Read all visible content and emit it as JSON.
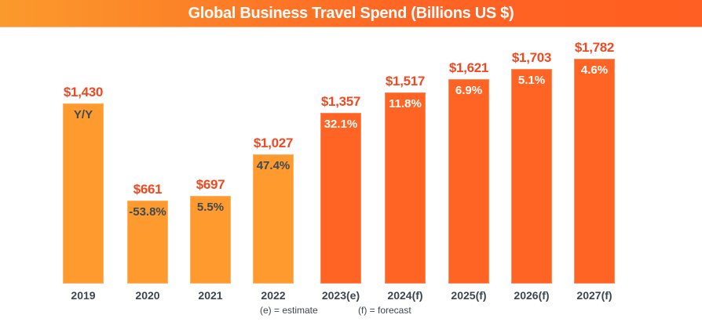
{
  "header": {
    "title": "Global Business Travel Spend (Billions US $)"
  },
  "notes": {
    "estimate": "(e) = estimate",
    "forecast": "(f) = forecast"
  },
  "colors": {
    "historical_bar": "#fe9a2e",
    "projected_bar": "#ff6424",
    "value_label": "#f14a22",
    "historical_pct_text": "#3d4a55",
    "projected_pct_text": "#ffffff",
    "axis_text": "#3c4650"
  },
  "chart_data": {
    "type": "bar",
    "title": "Global Business Travel Spend (Billions US $)",
    "xlabel": "",
    "ylabel": "",
    "categories": [
      "2019",
      "2020",
      "2021",
      "2022",
      "2023(e)",
      "2024(f)",
      "2025(f)",
      "2026(f)",
      "2027(f)"
    ],
    "values": [
      1430,
      661,
      697,
      1027,
      1357,
      1517,
      1621,
      1703,
      1782
    ],
    "value_labels": [
      "$1,430",
      "$661",
      "$697",
      "$1,027",
      "$1,357",
      "$1,517",
      "$1,621",
      "$1,703",
      "$1,782"
    ],
    "yoy_labels": [
      "Y/Y",
      "-53.8%",
      "5.5%",
      "47.4%",
      "32.1%",
      "11.8%",
      "6.9%",
      "5.1%",
      "4.6%"
    ],
    "yoy_change_pct": [
      null,
      -53.8,
      5.5,
      47.4,
      32.1,
      11.8,
      6.9,
      5.1,
      4.6
    ],
    "bar_kind": [
      "actual",
      "actual",
      "actual",
      "actual",
      "estimate",
      "forecast",
      "forecast",
      "forecast",
      "forecast"
    ],
    "annotations": [
      "(e) = estimate",
      "(f) = forecast"
    ],
    "ylim": [
      0,
      1900
    ],
    "grid": false,
    "legend": null
  }
}
